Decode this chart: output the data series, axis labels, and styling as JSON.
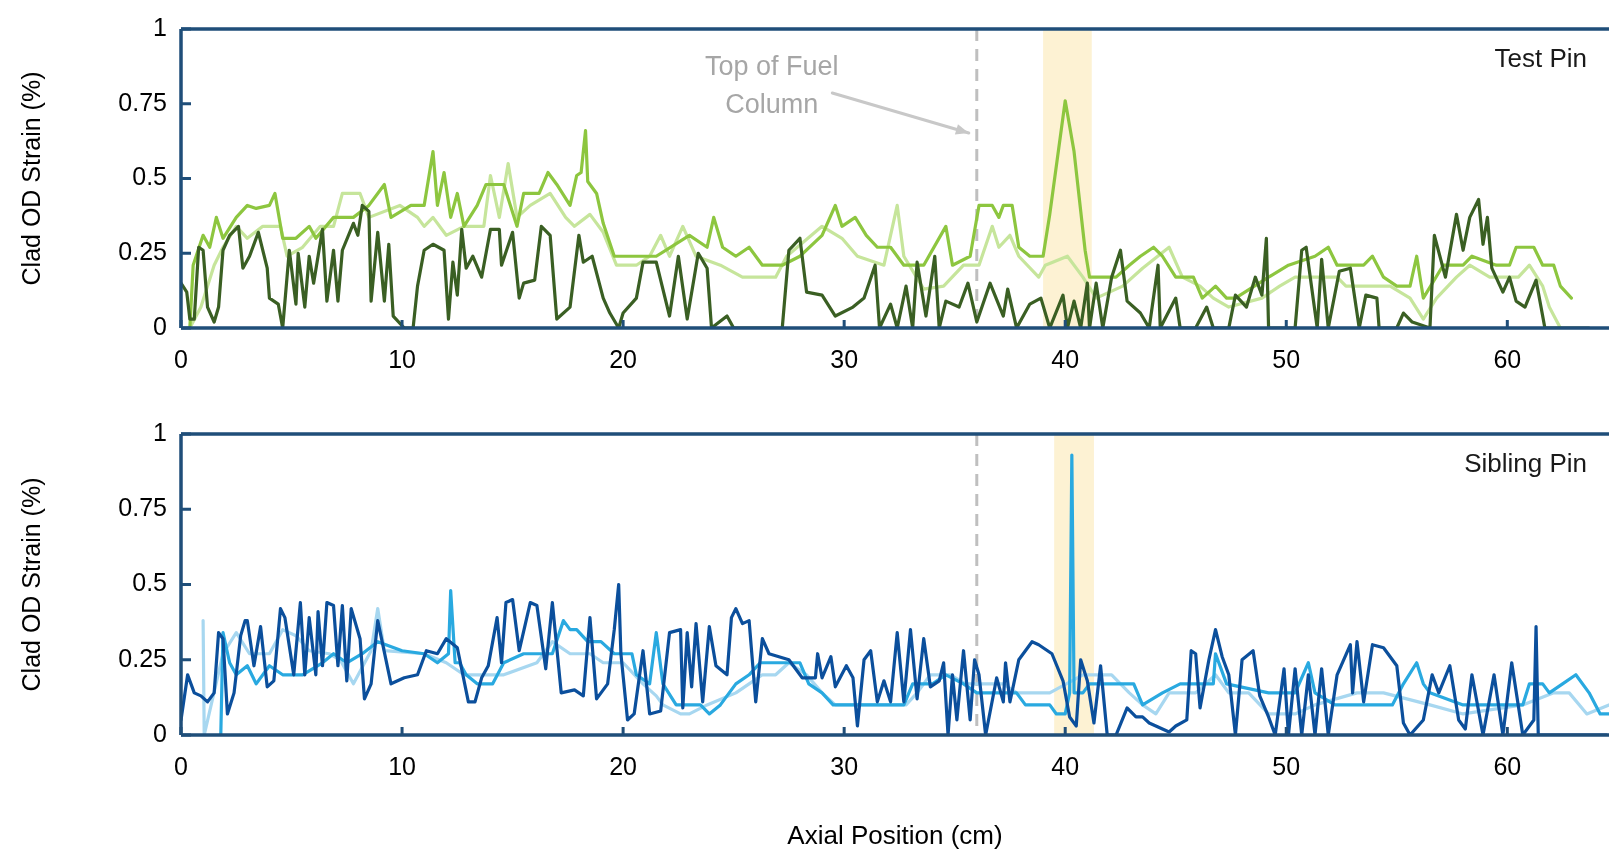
{
  "chart_data": [
    {
      "type": "line",
      "ylabel": "Clad OD Strain (%)",
      "annotations": [
        "Test Pin"
      ],
      "xlim": [
        0,
        64.6
      ],
      "xticks": [
        0,
        10,
        20,
        30,
        40,
        50,
        60
      ],
      "ylim": [
        0,
        1
      ],
      "yticks": [
        0,
        0.25,
        0.5,
        0.75,
        1
      ],
      "ref_lines": [
        {
          "axis": "x",
          "value": 36,
          "label": "Top of Fuel Column",
          "color": "#bfbfbf",
          "line_style": "dashed"
        }
      ],
      "bands": [
        {
          "axis": "x",
          "from": 39,
          "to": 41.2,
          "color": "#fdf2d3"
        }
      ],
      "series": [
        {
          "color": "#c6e59b",
          "x": [
            0.4,
            0.9,
            1.5,
            1.9,
            2.5,
            3.0,
            3.7,
            4.5,
            4.8,
            5.5,
            6.3,
            6.9,
            7.3,
            8.1,
            8.5,
            9.9,
            10.7,
            11.0,
            11.4,
            12.0,
            12.8,
            13.7,
            14.0,
            14.4,
            14.8,
            15.2,
            15.8,
            16.7,
            17.4,
            17.8,
            18.5,
            19.1,
            19.7,
            20.6,
            21.2,
            21.7,
            22.1,
            22.7,
            23.3,
            24.4,
            25.4,
            26.9,
            27.4,
            29.0,
            29.9,
            30.6,
            31.8,
            32.4,
            32.7,
            33.6,
            34.5,
            35.4,
            36.1,
            36.7,
            37.0,
            37.5,
            37.9,
            38.8,
            39.1,
            40.1,
            40.8,
            41.4,
            42.6,
            43.5,
            44.7,
            45.3,
            46.1,
            46.7,
            47.4,
            48.9,
            49.7,
            50.4,
            52.3,
            52.7,
            54.7,
            55.6,
            56.2,
            56.8,
            57.7,
            58.3,
            59.2,
            60.5,
            61.0,
            61.6,
            61.9,
            62.4
          ],
          "values": [
            0,
            0.07,
            0.21,
            0.27,
            0.34,
            0.3,
            0.34,
            0.34,
            0.24,
            0.27,
            0.34,
            0.34,
            0.45,
            0.45,
            0.37,
            0.41,
            0.37,
            0.34,
            0.37,
            0.31,
            0.34,
            0.34,
            0.51,
            0.37,
            0.55,
            0.37,
            0.41,
            0.45,
            0.37,
            0.34,
            0.38,
            0.32,
            0.21,
            0.21,
            0.24,
            0.31,
            0.24,
            0.34,
            0.24,
            0.21,
            0.17,
            0.17,
            0.24,
            0.34,
            0.3,
            0.24,
            0.21,
            0.41,
            0.24,
            0.13,
            0.14,
            0.21,
            0.21,
            0.34,
            0.27,
            0.31,
            0.24,
            0.17,
            0.21,
            0.24,
            0.17,
            0.1,
            0.14,
            0.2,
            0.27,
            0.17,
            0.14,
            0.1,
            0.07,
            0.1,
            0.14,
            0.17,
            0.17,
            0.14,
            0.14,
            0.1,
            0.03,
            0.1,
            0.17,
            0.21,
            0.17,
            0.17,
            0.21,
            0.14,
            0.07,
            0
          ]
        },
        {
          "color": "#8dc63f",
          "x": [
            0.4,
            0.55,
            1.0,
            1.3,
            1.6,
            1.9,
            2.5,
            3.0,
            3.4,
            4.0,
            4.25,
            4.6,
            5.2,
            5.8,
            6.1,
            6.9,
            7.8,
            8.5,
            9.2,
            9.5,
            10.4,
            11.0,
            11.4,
            11.6,
            11.9,
            12.2,
            12.5,
            12.8,
            13.4,
            13.8,
            14.6,
            15.2,
            15.5,
            16.2,
            16.6,
            17.0,
            17.6,
            17.9,
            18.1,
            18.3,
            18.4,
            18.8,
            19.1,
            19.6,
            20.6,
            21.5,
            23.0,
            23.8,
            24.1,
            24.5,
            25.1,
            25.7,
            26.3,
            27.2,
            28.0,
            29.0,
            29.6,
            29.9,
            30.5,
            31.0,
            31.5,
            32.1,
            32.7,
            33.6,
            34.6,
            34.9,
            35.7,
            36.1,
            36.7,
            37.0,
            37.2,
            37.6,
            37.9,
            38.4,
            39.0,
            39.3,
            40.0,
            40.4,
            40.9,
            41.1,
            42.3,
            42.9,
            43.4,
            44.0,
            44.4,
            45.0,
            45.8,
            46.2,
            46.8,
            47.3,
            47.7,
            49.2,
            50.1,
            51.3,
            51.9,
            52.3,
            53.5,
            53.9,
            54.4,
            55.0,
            55.6,
            55.9,
            56.2,
            57.1,
            58.0,
            58.4,
            59.5,
            60.1,
            60.4,
            61.2,
            61.6,
            62.1,
            62.4,
            62.9
          ],
          "values": [
            0,
            0.21,
            0.31,
            0.27,
            0.37,
            0.3,
            0.37,
            0.41,
            0.4,
            0.41,
            0.45,
            0.3,
            0.3,
            0.34,
            0.3,
            0.37,
            0.37,
            0.41,
            0.48,
            0.37,
            0.41,
            0.41,
            0.59,
            0.41,
            0.52,
            0.37,
            0.45,
            0.34,
            0.41,
            0.48,
            0.48,
            0.34,
            0.45,
            0.45,
            0.52,
            0.48,
            0.41,
            0.51,
            0.52,
            0.66,
            0.49,
            0.45,
            0.35,
            0.24,
            0.24,
            0.24,
            0.31,
            0.27,
            0.37,
            0.27,
            0.24,
            0.27,
            0.21,
            0.21,
            0.24,
            0.31,
            0.41,
            0.34,
            0.37,
            0.31,
            0.27,
            0.27,
            0.21,
            0.21,
            0.34,
            0.21,
            0.24,
            0.41,
            0.41,
            0.37,
            0.41,
            0.41,
            0.27,
            0.24,
            0.24,
            0.38,
            0.76,
            0.59,
            0.26,
            0.17,
            0.17,
            0.21,
            0.24,
            0.27,
            0.24,
            0.17,
            0.17,
            0.1,
            0.14,
            0.1,
            0.1,
            0.17,
            0.21,
            0.24,
            0.27,
            0.21,
            0.21,
            0.24,
            0.17,
            0.14,
            0.14,
            0.24,
            0.1,
            0.21,
            0.21,
            0.24,
            0.21,
            0.21,
            0.27,
            0.27,
            0.21,
            0.21,
            0.14,
            0.1
          ]
        },
        {
          "color": "#3a5f23",
          "x": [
            0,
            0.26,
            0.4,
            0.6,
            0.8,
            1.0,
            1.2,
            1.5,
            1.7,
            1.9,
            2.2,
            2.6,
            2.8,
            3.1,
            3.5,
            3.9,
            4.0,
            4.4,
            4.6,
            4.9,
            5.2,
            5.3,
            5.6,
            5.8,
            6.0,
            6.4,
            6.6,
            6.9,
            7.1,
            7.3,
            7.8,
            8.0,
            8.2,
            8.5,
            8.6,
            8.9,
            9.2,
            9.4,
            9.6,
            10.1,
            10.5,
            10.7,
            11.0,
            11.4,
            11.9,
            12.1,
            12.3,
            12.5,
            12.7,
            12.9,
            13.2,
            13.6,
            14.0,
            14.4,
            14.5,
            15.0,
            15.3,
            15.5,
            16.0,
            16.3,
            16.7,
            17.0,
            17.6,
            18.0,
            18.2,
            18.6,
            19.1,
            19.4,
            19.8,
            20.0,
            20.6,
            20.9,
            21.5,
            22.1,
            22.5,
            22.9,
            23.4,
            23.8,
            24.0,
            24.7,
            25.0,
            27.2,
            27.5,
            28.0,
            28.3,
            29.0,
            29.6,
            30.4,
            30.9,
            31.4,
            31.6,
            32.1,
            32.4,
            32.8,
            33.1,
            33.3,
            33.7,
            34.1,
            34.3,
            34.6,
            35.2,
            35.6,
            36.0,
            36.6,
            37.2,
            37.4,
            37.8,
            38.4,
            38.9,
            39.3,
            39.9,
            40.1,
            40.4,
            40.7,
            41.0,
            41.1,
            41.4,
            41.7,
            42.1,
            42.5,
            42.8,
            43.4,
            43.8,
            44.2,
            44.3,
            45.0,
            45.2,
            45.9,
            46.4,
            46.7,
            47.4,
            47.7,
            48.2,
            48.6,
            48.9,
            49.1,
            49.2,
            50.4,
            50.7,
            50.9,
            51.4,
            51.6,
            51.9,
            52.4,
            52.9,
            53.3,
            53.6,
            54.1,
            54.2,
            55.0,
            55.3,
            55.7,
            56.5,
            56.7,
            57.2,
            57.7,
            58.0,
            58.3,
            58.7,
            58.9,
            59.1,
            59.3,
            59.8,
            60.1,
            60.4,
            60.8,
            61.3,
            61.7,
            63.7
          ],
          "values": [
            0.15,
            0.12,
            0.03,
            0.03,
            0.27,
            0.26,
            0.07,
            0.02,
            0.07,
            0.26,
            0.31,
            0.34,
            0.2,
            0.24,
            0.32,
            0.2,
            0.1,
            0.08,
            0,
            0.26,
            0.08,
            0.25,
            0.07,
            0.24,
            0.15,
            0.33,
            0.09,
            0.26,
            0.09,
            0.26,
            0.35,
            0.31,
            0.41,
            0.39,
            0.09,
            0.32,
            0.09,
            0.28,
            0.04,
            0,
            0,
            0.14,
            0.26,
            0.28,
            0.26,
            0.03,
            0.22,
            0.11,
            0.33,
            0.2,
            0.24,
            0.17,
            0.33,
            0.33,
            0.21,
            0.32,
            0.1,
            0.15,
            0.16,
            0.34,
            0.31,
            0.03,
            0.07,
            0.31,
            0.22,
            0.24,
            0.1,
            0.05,
            0,
            0.05,
            0.1,
            0.22,
            0.22,
            0.04,
            0.24,
            0.03,
            0.25,
            0.2,
            0,
            0.04,
            0,
            0,
            0.26,
            0.3,
            0.12,
            0.11,
            0.04,
            0.07,
            0.1,
            0.21,
            0,
            0.08,
            0,
            0.14,
            0,
            0.22,
            0.04,
            0.24,
            0,
            0.09,
            0.07,
            0.15,
            0.02,
            0.15,
            0.04,
            0.13,
            0,
            0.08,
            0.1,
            0,
            0.11,
            0,
            0.09,
            0,
            0.15,
            0,
            0.15,
            0,
            0.17,
            0.26,
            0.09,
            0.05,
            0,
            0.21,
            0,
            0.1,
            0,
            0,
            0.07,
            0,
            0,
            0.11,
            0.07,
            0.17,
            0.11,
            0.3,
            0,
            0,
            0.26,
            0.27,
            0,
            0.23,
            0,
            0.19,
            0.2,
            0,
            0.11,
            0.1,
            0,
            0,
            0.05,
            0.02,
            0,
            0.31,
            0.17,
            0.38,
            0.26,
            0.37,
            0.43,
            0.28,
            0.37,
            0.2,
            0.12,
            0.17,
            0.09,
            0.07,
            0.16,
            0,
            0
          ]
        }
      ]
    },
    {
      "type": "line",
      "ylabel": "Clad OD Strain (%)",
      "xlabel": "Axial Position (cm)",
      "annotations": [
        "Sibling Pin"
      ],
      "xlim": [
        0,
        64.6
      ],
      "xticks": [
        0,
        10,
        20,
        30,
        40,
        50,
        60
      ],
      "ylim": [
        0,
        1
      ],
      "yticks": [
        0,
        0.25,
        0.5,
        0.75,
        1
      ],
      "ref_lines": [
        {
          "axis": "x",
          "value": 36,
          "color": "#bfbfbf",
          "line_style": "dashed"
        }
      ],
      "bands": [
        {
          "axis": "x",
          "from": 39.5,
          "to": 41.3,
          "color": "#fdf2d3"
        }
      ],
      "series": [
        {
          "color": "#a7d7f0",
          "x": [
            1.0,
            1.05,
            1.9,
            2.5,
            3.1,
            4.0,
            4.6,
            5.2,
            5.8,
            6.7,
            7.2,
            7.8,
            8.6,
            8.9,
            9.2,
            11.0,
            12.0,
            12.8,
            14.6,
            16.1,
            16.8,
            17.6,
            18.5,
            19.1,
            20.0,
            20.9,
            21.5,
            21.8,
            22.6,
            23.0,
            23.8,
            25.1,
            25.7,
            26.3,
            26.9,
            27.5,
            28.3,
            29.0,
            29.6,
            32.8,
            33.3,
            33.9,
            34.8,
            35.5,
            36.4,
            37.2,
            37.8,
            39.3,
            40.8,
            42.1,
            42.9,
            43.5,
            44.1,
            44.7,
            45.9,
            46.8,
            47.4,
            48.3,
            49.2,
            50.4,
            51.3,
            53.2,
            54.4,
            56.5,
            58.0,
            60.7,
            62.1,
            62.8,
            63.6,
            64.6
          ],
          "values": [
            0.38,
            0,
            0.27,
            0.34,
            0.27,
            0.27,
            0.35,
            0.33,
            0.28,
            0.27,
            0.25,
            0.17,
            0.28,
            0.42,
            0.28,
            0.27,
            0.24,
            0.2,
            0.2,
            0.24,
            0.31,
            0.27,
            0.27,
            0.24,
            0.24,
            0.17,
            0.13,
            0.1,
            0.07,
            0.07,
            0.1,
            0.14,
            0.17,
            0.2,
            0.2,
            0.24,
            0.2,
            0.14,
            0.1,
            0.1,
            0.14,
            0.2,
            0.2,
            0.17,
            0.17,
            0.17,
            0.14,
            0.14,
            0.2,
            0.2,
            0.14,
            0.1,
            0.07,
            0.14,
            0.14,
            0.2,
            0.14,
            0.14,
            0.07,
            0.07,
            0.1,
            0.14,
            0.14,
            0.1,
            0.07,
            0.1,
            0.14,
            0.14,
            0.07,
            0.1
          ]
        },
        {
          "color": "#29a9e0",
          "x": [
            1.8,
            1.9,
            2.2,
            2.5,
            3.0,
            3.4,
            4.0,
            4.6,
            5.5,
            6.4,
            6.9,
            7.5,
            8.2,
            8.9,
            10.0,
            11.0,
            11.6,
            12.1,
            12.2,
            12.4,
            12.6,
            12.9,
            13.4,
            14.1,
            14.6,
            15.5,
            16.8,
            17.3,
            17.6,
            17.9,
            18.4,
            19.0,
            19.6,
            20.4,
            20.6,
            21.2,
            21.5,
            21.8,
            22.4,
            23.5,
            23.9,
            24.4,
            25.1,
            25.7,
            26.2,
            28.0,
            28.4,
            29.0,
            29.5,
            30.2,
            32.7,
            33.1,
            34.0,
            34.6,
            35.4,
            36.0,
            37.8,
            38.2,
            39.3,
            39.6,
            40.0,
            40.2,
            40.3,
            40.4,
            40.8,
            41.1,
            43.1,
            43.5,
            44.4,
            45.2,
            46.7,
            46.8,
            47.3,
            49.2,
            50.4,
            51.0,
            51.3,
            52.2,
            54.8,
            55.3,
            55.9,
            56.2,
            56.5,
            58.0,
            60.7,
            61.0,
            61.6,
            61.9,
            62.5,
            63.1,
            63.7,
            64.2,
            64.6
          ],
          "values": [
            0,
            0.34,
            0.24,
            0.2,
            0.23,
            0.17,
            0.23,
            0.2,
            0.2,
            0.24,
            0.27,
            0.24,
            0.27,
            0.31,
            0.28,
            0.27,
            0.24,
            0.27,
            0.48,
            0.24,
            0.24,
            0.2,
            0.17,
            0.17,
            0.24,
            0.27,
            0.27,
            0.38,
            0.35,
            0.35,
            0.31,
            0.31,
            0.27,
            0.27,
            0.2,
            0.17,
            0.34,
            0.17,
            0.1,
            0.1,
            0.07,
            0.1,
            0.17,
            0.2,
            0.24,
            0.24,
            0.17,
            0.14,
            0.1,
            0.1,
            0.1,
            0.17,
            0.17,
            0.2,
            0.17,
            0.14,
            0.14,
            0.1,
            0.1,
            0.07,
            0.07,
            0.14,
            0.93,
            0.14,
            0.14,
            0.17,
            0.17,
            0.1,
            0.14,
            0.17,
            0.17,
            0.27,
            0.17,
            0.14,
            0.14,
            0.24,
            0.14,
            0.1,
            0.1,
            0.17,
            0.24,
            0.17,
            0.14,
            0.1,
            0.1,
            0.17,
            0.17,
            0.14,
            0.17,
            0.2,
            0.14,
            0.07,
            0.07
          ]
        },
        {
          "color": "#0b4f9c",
          "x": [
            0,
            0.3,
            0.6,
            0.9,
            1.2,
            1.5,
            1.7,
            1.9,
            2.1,
            2.4,
            2.7,
            2.9,
            3.0,
            3.3,
            3.6,
            3.9,
            4.2,
            4.5,
            4.7,
            5.1,
            5.4,
            5.6,
            5.8,
            6.1,
            6.2,
            6.4,
            6.6,
            6.9,
            7.1,
            7.3,
            7.5,
            7.7,
            8.1,
            8.3,
            8.6,
            8.9,
            9.5,
            10.1,
            10.7,
            11.1,
            11.6,
            12.0,
            12.5,
            13.0,
            13.3,
            13.6,
            13.9,
            14.3,
            14.5,
            14.7,
            15.0,
            15.3,
            15.8,
            16.1,
            16.5,
            16.8,
            17.2,
            17.8,
            18.2,
            18.5,
            18.8,
            19.3,
            19.6,
            19.8,
            19.9,
            20.2,
            20.5,
            20.9,
            21.2,
            21.7,
            22.1,
            22.6,
            22.7,
            22.9,
            23.1,
            23.3,
            23.6,
            23.9,
            24.2,
            24.7,
            24.9,
            25.1,
            25.4,
            25.7,
            26.0,
            26.3,
            26.6,
            27.5,
            28.1,
            28.7,
            28.8,
            29.0,
            29.4,
            29.6,
            30.1,
            30.4,
            30.6,
            30.9,
            31.2,
            31.5,
            31.8,
            32.1,
            32.4,
            32.7,
            33.0,
            33.3,
            33.6,
            33.9,
            34.3,
            34.5,
            34.7,
            34.9,
            35.1,
            35.4,
            35.7,
            35.9,
            36.1,
            36.4,
            36.9,
            37.2,
            37.3,
            37.5,
            37.9,
            38.5,
            38.8,
            39.4,
            39.9,
            40.2,
            40.5,
            40.7,
            41.0,
            41.3,
            41.6,
            41.9,
            42.3,
            42.8,
            43.2,
            43.5,
            43.8,
            44.7,
            45.0,
            45.5,
            45.7,
            45.9,
            46.1,
            46.5,
            46.8,
            47.1,
            47.4,
            47.7,
            48.0,
            48.5,
            48.8,
            49.2,
            49.5,
            49.9,
            50.1,
            50.4,
            50.7,
            51.0,
            51.3,
            51.6,
            51.9,
            52.3,
            52.9,
            53.0,
            53.2,
            53.5,
            53.9,
            54.4,
            55.0,
            55.3,
            55.6,
            56.2,
            56.6,
            56.9,
            57.4,
            57.8,
            58.1,
            58.4,
            58.9,
            59.4,
            59.8,
            60.2,
            60.7,
            61.2,
            61.3,
            61.4,
            64.5
          ],
          "values": [
            0.05,
            0.2,
            0.14,
            0.13,
            0.11,
            0.14,
            0.34,
            0.32,
            0.07,
            0.14,
            0.33,
            0.38,
            0.38,
            0.23,
            0.36,
            0.16,
            0.18,
            0.42,
            0.39,
            0.2,
            0.44,
            0.2,
            0.39,
            0.2,
            0.41,
            0.23,
            0.44,
            0.43,
            0.23,
            0.43,
            0.18,
            0.42,
            0.32,
            0.12,
            0.17,
            0.38,
            0.17,
            0.19,
            0.2,
            0.28,
            0.27,
            0.32,
            0.29,
            0.11,
            0.11,
            0.19,
            0.23,
            0.39,
            0.24,
            0.44,
            0.45,
            0.28,
            0.44,
            0.43,
            0.22,
            0.44,
            0.14,
            0.15,
            0.13,
            0.39,
            0.12,
            0.17,
            0.35,
            0.5,
            0.27,
            0.05,
            0.07,
            0.28,
            0.07,
            0.08,
            0.34,
            0.35,
            0.09,
            0.34,
            0.16,
            0.37,
            0.11,
            0.36,
            0.23,
            0.2,
            0.39,
            0.42,
            0.37,
            0.38,
            0.11,
            0.32,
            0.27,
            0.25,
            0.19,
            0.19,
            0.27,
            0.19,
            0.26,
            0.16,
            0.23,
            0.19,
            0.03,
            0.25,
            0.28,
            0.11,
            0.18,
            0.11,
            0.34,
            0.11,
            0.35,
            0.12,
            0.32,
            0.16,
            0.18,
            0.24,
            0,
            0.2,
            0.05,
            0.28,
            0.05,
            0.25,
            0.2,
            0,
            0.19,
            0.11,
            0.24,
            0.11,
            0.25,
            0.31,
            0.3,
            0.27,
            0.18,
            0.06,
            0.03,
            0.25,
            0.18,
            0.04,
            0.23,
            0,
            0,
            0.09,
            0.06,
            0.06,
            0.04,
            0.01,
            0.03,
            0.05,
            0.28,
            0.27,
            0.09,
            0.25,
            0.35,
            0.26,
            0.2,
            0,
            0.25,
            0.28,
            0.13,
            0.06,
            0,
            0.22,
            0,
            0.22,
            0,
            0.2,
            0,
            0.22,
            0,
            0.2,
            0.3,
            0.14,
            0.31,
            0.11,
            0.3,
            0.29,
            0.23,
            0.04,
            0,
            0.05,
            0.2,
            0.14,
            0.23,
            0.05,
            0.02,
            0.2,
            0,
            0.2,
            0,
            0.24,
            0,
            0.05,
            0.36,
            0,
            0
          ]
        }
      ]
    }
  ]
}
